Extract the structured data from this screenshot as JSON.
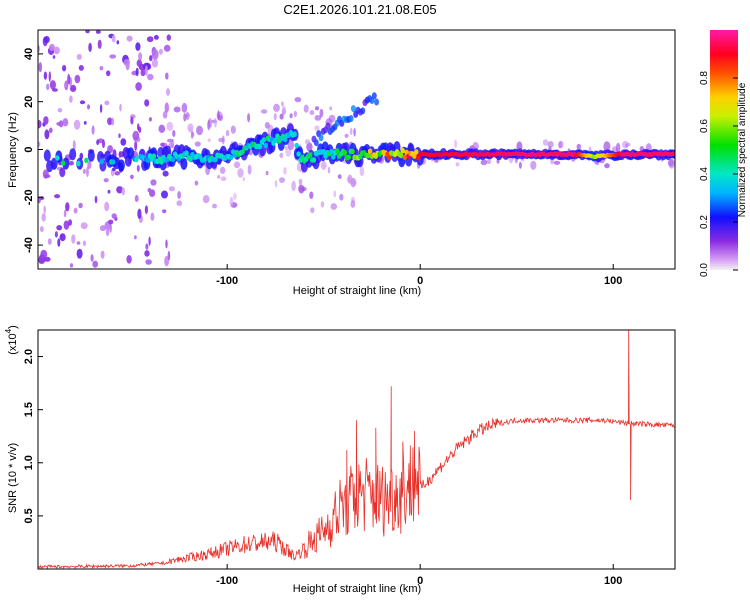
{
  "chart_data": [
    {
      "type": "heatmap",
      "title": "C2E1.2026.101.21.08.E05",
      "xlabel": "Height of straight line (km)",
      "ylabel": "Frequency (Hz)",
      "xlim": [
        -198,
        132
      ],
      "ylim": [
        -50,
        50
      ],
      "xticks": [
        -100,
        0,
        100
      ],
      "xtick_labels": [
        "-100",
        "0",
        "100"
      ],
      "yticks": [
        -40,
        -20,
        0,
        20,
        40
      ],
      "ytick_labels": [
        "-40",
        "-20",
        "0",
        "20",
        "40"
      ],
      "colorbar": {
        "label": "Normalized spectral amplitude",
        "range": [
          0,
          1
        ],
        "ticks": [
          0,
          0.2,
          0.4,
          0.6,
          0.8
        ],
        "tick_labels": [
          "0.0",
          "0.2",
          "0.4",
          "0.6",
          "0.8"
        ],
        "colormap": "purple-blue-cyan-green-yellow-red-magenta"
      },
      "ridge": {
        "description": "dominant spectral peak track",
        "points": [
          {
            "x": -190,
            "y": -5,
            "amp": 0.45
          },
          {
            "x": -140,
            "y": -4,
            "amp": 0.4
          },
          {
            "x": -120,
            "y": -3,
            "amp": 0.4
          },
          {
            "x": -100,
            "y": -3,
            "amp": 0.45
          },
          {
            "x": -80,
            "y": 3,
            "amp": 0.45
          },
          {
            "x": -65,
            "y": 6,
            "amp": 0.4
          },
          {
            "x": -62,
            "y": -5,
            "amp": 0.45
          },
          {
            "x": -50,
            "y": -2,
            "amp": 0.45
          },
          {
            "x": -38,
            "y": -2,
            "amp": 0.55
          },
          {
            "x": -20,
            "y": -2,
            "amp": 0.75
          },
          {
            "x": 0,
            "y": -2,
            "amp": 0.9
          },
          {
            "x": 50,
            "y": -2,
            "amp": 0.95
          },
          {
            "x": 80,
            "y": -2,
            "amp": 0.95
          },
          {
            "x": 90,
            "y": -3,
            "amp": 0.6
          },
          {
            "x": 105,
            "y": -2,
            "amp": 0.95
          },
          {
            "x": 132,
            "y": -2,
            "amp": 0.95
          }
        ]
      }
    },
    {
      "type": "line",
      "xlabel": "Height of straight line (km)",
      "ylabel": "SNR (10 * v/v)",
      "yscale_label": "(x10",
      "yscale_exponent": "4",
      "xlim": [
        -198,
        132
      ],
      "ylim": [
        0,
        2.25
      ],
      "xticks": [
        -100,
        0,
        100
      ],
      "xtick_labels": [
        "-100",
        "0",
        "100"
      ],
      "yticks": [
        0.5,
        1.0,
        1.5,
        2.0
      ],
      "ytick_labels": [
        "0.5",
        "1.0",
        "1.5",
        "2.0"
      ],
      "series": [
        {
          "name": "SNR",
          "color": "#e8302a",
          "envelope": [
            {
              "x": -198,
              "y": 0.02
            },
            {
              "x": -150,
              "y": 0.03
            },
            {
              "x": -130,
              "y": 0.06
            },
            {
              "x": -110,
              "y": 0.12
            },
            {
              "x": -90,
              "y": 0.2
            },
            {
              "x": -75,
              "y": 0.22
            },
            {
              "x": -65,
              "y": 0.1
            },
            {
              "x": -50,
              "y": 0.3
            },
            {
              "x": -40,
              "y": 0.5
            },
            {
              "x": -30,
              "y": 0.6
            },
            {
              "x": -20,
              "y": 0.55
            },
            {
              "x": -10,
              "y": 0.6
            },
            {
              "x": 0,
              "y": 0.75
            },
            {
              "x": 10,
              "y": 0.95
            },
            {
              "x": 20,
              "y": 1.15
            },
            {
              "x": 30,
              "y": 1.3
            },
            {
              "x": 40,
              "y": 1.37
            },
            {
              "x": 50,
              "y": 1.4
            },
            {
              "x": 80,
              "y": 1.4
            },
            {
              "x": 95,
              "y": 1.4
            },
            {
              "x": 104,
              "y": 1.38
            },
            {
              "x": 110,
              "y": 1.37
            },
            {
              "x": 132,
              "y": 1.35
            }
          ],
          "spikes": [
            {
              "x": -38,
              "y": 1.12
            },
            {
              "x": -33,
              "y": 1.4
            },
            {
              "x": -23,
              "y": 1.33
            },
            {
              "x": -15,
              "y": 1.72
            },
            {
              "x": -9,
              "y": 1.2
            },
            {
              "x": -3,
              "y": 1.3
            },
            {
              "x": 108,
              "y": 2.25
            },
            {
              "x": 109,
              "y": 0.65
            }
          ]
        }
      ]
    }
  ]
}
